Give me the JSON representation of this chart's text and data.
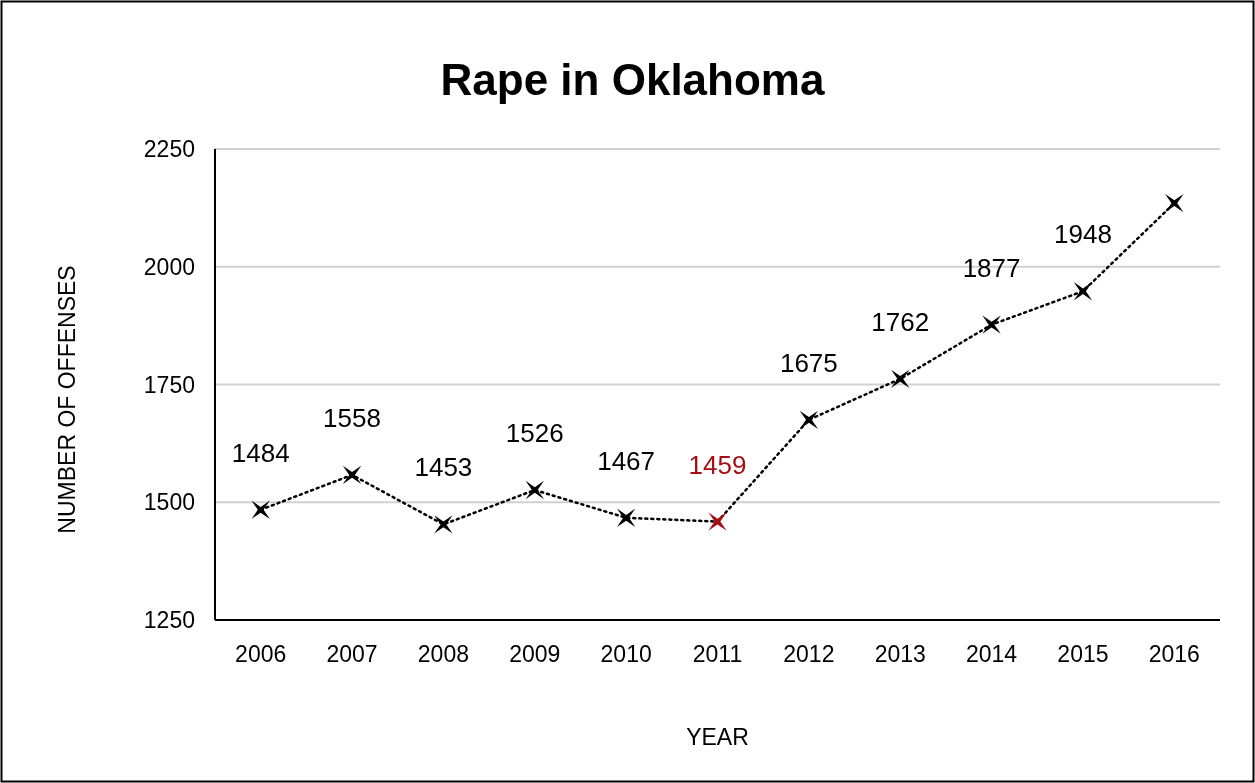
{
  "chart_data": {
    "type": "line",
    "title": "Rape in Oklahoma",
    "xlabel": "YEAR",
    "ylabel": "NUMBER OF OFFENSES",
    "categories": [
      "2006",
      "2007",
      "2008",
      "2009",
      "2010",
      "2011",
      "2012",
      "2013",
      "2014",
      "2015",
      "2016"
    ],
    "series": [
      {
        "color": "#000000",
        "colors": [
          "#000000",
          "#000000",
          "#000000",
          "#000000",
          "#000000",
          "#a50f15",
          "#000000",
          "#000000",
          "#000000",
          "#000000",
          "#000000"
        ],
        "values": [
          1484,
          1558,
          1453,
          1526,
          1467,
          1459,
          1675,
          1762,
          1877,
          1948,
          2135
        ],
        "value_labels": [
          "1484",
          "1558",
          "1453",
          "1526",
          "1467",
          "1459",
          "1675",
          "1762",
          "1877",
          "1948",
          null
        ]
      }
    ],
    "ylim": [
      1250,
      2250
    ],
    "yticks": [
      1250,
      1500,
      1750,
      2000,
      2250
    ],
    "grid": "y",
    "marker": "star",
    "line_style": "dotted"
  }
}
